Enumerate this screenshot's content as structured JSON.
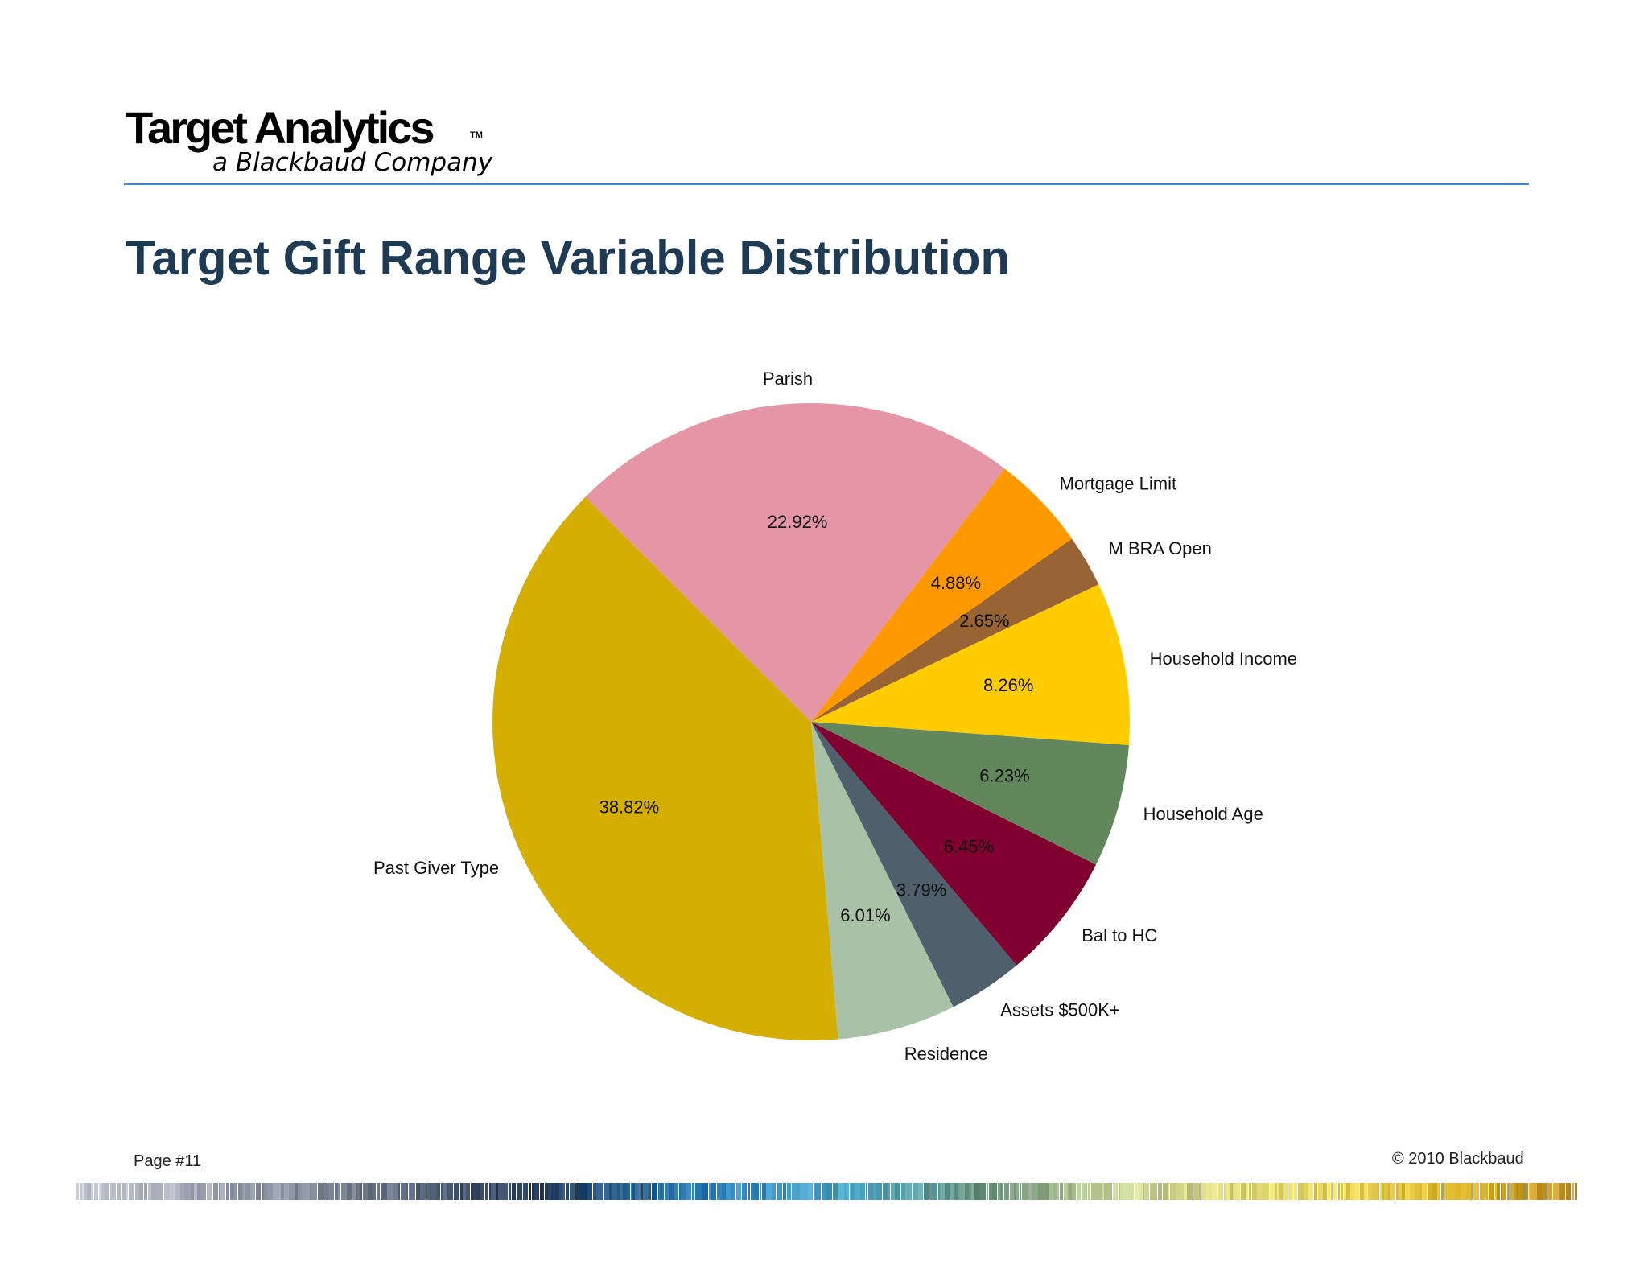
{
  "logo": {
    "name": "Target Analytics",
    "tm": "TM",
    "tagline": "a Blackbaud Company"
  },
  "title": "Target Gift Range Variable Distribution",
  "footer": {
    "page": "Page #11",
    "copyright": "© 2010 Blackbaud"
  },
  "colors": {
    "rule": "#3a87c8",
    "title": "#1f3a53"
  },
  "chart_data": {
    "type": "pie",
    "title": "",
    "start_angle_deg": -4.2,
    "direction": "counterclockwise",
    "legend": "none",
    "slices": [
      {
        "label": "Household Income",
        "value": 8.26,
        "pct": "8.26%",
        "color": "#ffcc00"
      },
      {
        "label": "M BRA Open",
        "value": 2.65,
        "pct": "2.65%",
        "color": "#986433"
      },
      {
        "label": "Mortgage Limit",
        "value": 4.88,
        "pct": "4.88%",
        "color": "#ff9900"
      },
      {
        "label": "Parish",
        "value": 22.92,
        "pct": "22.92%",
        "color": "#e495a6"
      },
      {
        "label": "Past Giver Type",
        "value": 38.82,
        "pct": "38.82%",
        "color": "#d4ae00"
      },
      {
        "label": "Residence",
        "value": 6.01,
        "pct": "6.01%",
        "color": "#a9c1a7"
      },
      {
        "label": "Assets $500K+",
        "value": 3.79,
        "pct": "3.79%",
        "color": "#4f5f6b"
      },
      {
        "label": "Bal to HC",
        "value": 6.45,
        "pct": "6.45%",
        "color": "#800030"
      },
      {
        "label": "Household Age",
        "value": 6.23,
        "pct": "6.23%",
        "color": "#62875d"
      }
    ]
  }
}
